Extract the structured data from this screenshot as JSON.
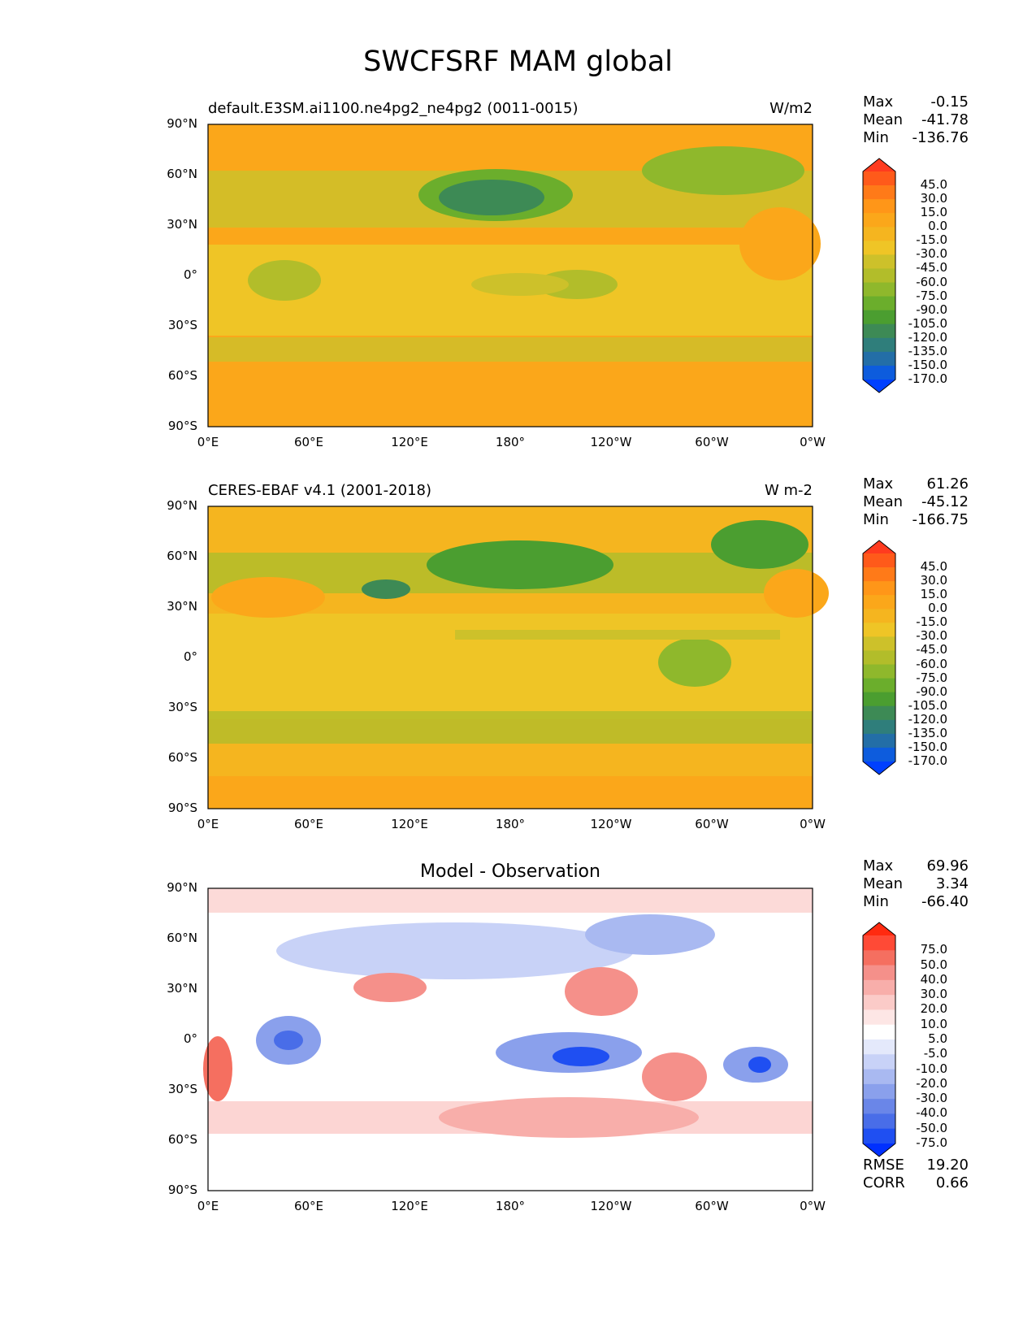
{
  "title": "SWCFSRF MAM global",
  "lat_ticks": [
    "90°N",
    "60°N",
    "30°N",
    "0°",
    "30°S",
    "60°S",
    "90°S"
  ],
  "lon_ticks": [
    "0°E",
    "60°E",
    "120°E",
    "180°",
    "120°W",
    "60°W",
    "0°W"
  ],
  "panels": [
    {
      "left_title": "default.E3SM.ai1100.ne4pg2_ne4pg2 (0011-0015)",
      "units": "W/m2",
      "center_title": "",
      "stats": [
        {
          "label": "Max",
          "value": "-0.15"
        },
        {
          "label": "Mean",
          "value": "-41.78"
        },
        {
          "label": "Min",
          "value": "-136.76"
        }
      ],
      "colorbar_labels": [
        "45.0",
        "30.0",
        "15.0",
        "0.0",
        "-15.0",
        "-30.0",
        "-45.0",
        "-60.0",
        "-75.0",
        "-90.0",
        "-105.0",
        "-120.0",
        "-135.0",
        "-150.0",
        "-170.0"
      ],
      "colorbar_colors": [
        "#ff3b1f",
        "#ff5a1a",
        "#ff7a18",
        "#ff9618",
        "#fba71a",
        "#f5b51f",
        "#efc526",
        "#cdc12a",
        "#b2bd2a",
        "#8fb82c",
        "#6bae2c",
        "#4b9e30",
        "#3d8a55",
        "#2f7e7b",
        "#236ea7",
        "#0d5cdd",
        "#0040ff"
      ],
      "bottom_stats": []
    },
    {
      "left_title": "CERES-EBAF v4.1 (2001-2018)",
      "units": "W m-2",
      "center_title": "",
      "stats": [
        {
          "label": "Max",
          "value": "61.26"
        },
        {
          "label": "Mean",
          "value": "-45.12"
        },
        {
          "label": "Min",
          "value": "-166.75"
        }
      ],
      "colorbar_labels": [
        "45.0",
        "30.0",
        "15.0",
        "0.0",
        "-15.0",
        "-30.0",
        "-45.0",
        "-60.0",
        "-75.0",
        "-90.0",
        "-105.0",
        "-120.0",
        "-135.0",
        "-150.0",
        "-170.0"
      ],
      "colorbar_colors": [
        "#ff3b1f",
        "#ff5a1a",
        "#ff7a18",
        "#ff9618",
        "#fba71a",
        "#f5b51f",
        "#efc526",
        "#cdc12a",
        "#b2bd2a",
        "#8fb82c",
        "#6bae2c",
        "#4b9e30",
        "#3d8a55",
        "#2f7e7b",
        "#236ea7",
        "#0d5cdd",
        "#0040ff"
      ],
      "bottom_stats": []
    },
    {
      "left_title": "",
      "units": "",
      "center_title": "Model - Observation",
      "stats": [
        {
          "label": "Max",
          "value": "69.96"
        },
        {
          "label": "Mean",
          "value": "3.34"
        },
        {
          "label": "Min",
          "value": "-66.40"
        }
      ],
      "colorbar_labels": [
        "75.0",
        "50.0",
        "40.0",
        "30.0",
        "20.0",
        "10.0",
        "5.0",
        "-5.0",
        "-10.0",
        "-20.0",
        "-30.0",
        "-40.0",
        "-50.0",
        "-75.0"
      ],
      "colorbar_colors": [
        "#ff2a10",
        "#ff4a36",
        "#f56f60",
        "#f5908a",
        "#f8aeaa",
        "#fbcbc8",
        "#fde6e5",
        "#ffffff",
        "#e4e9fb",
        "#c8d2f7",
        "#a9b9f1",
        "#8aa0ec",
        "#6a86e8",
        "#496de8",
        "#1f4ff2",
        "#0030ff"
      ],
      "bottom_stats": [
        {
          "label": "RMSE",
          "value": "19.20"
        },
        {
          "label": "CORR",
          "value": "0.66"
        }
      ]
    }
  ]
}
